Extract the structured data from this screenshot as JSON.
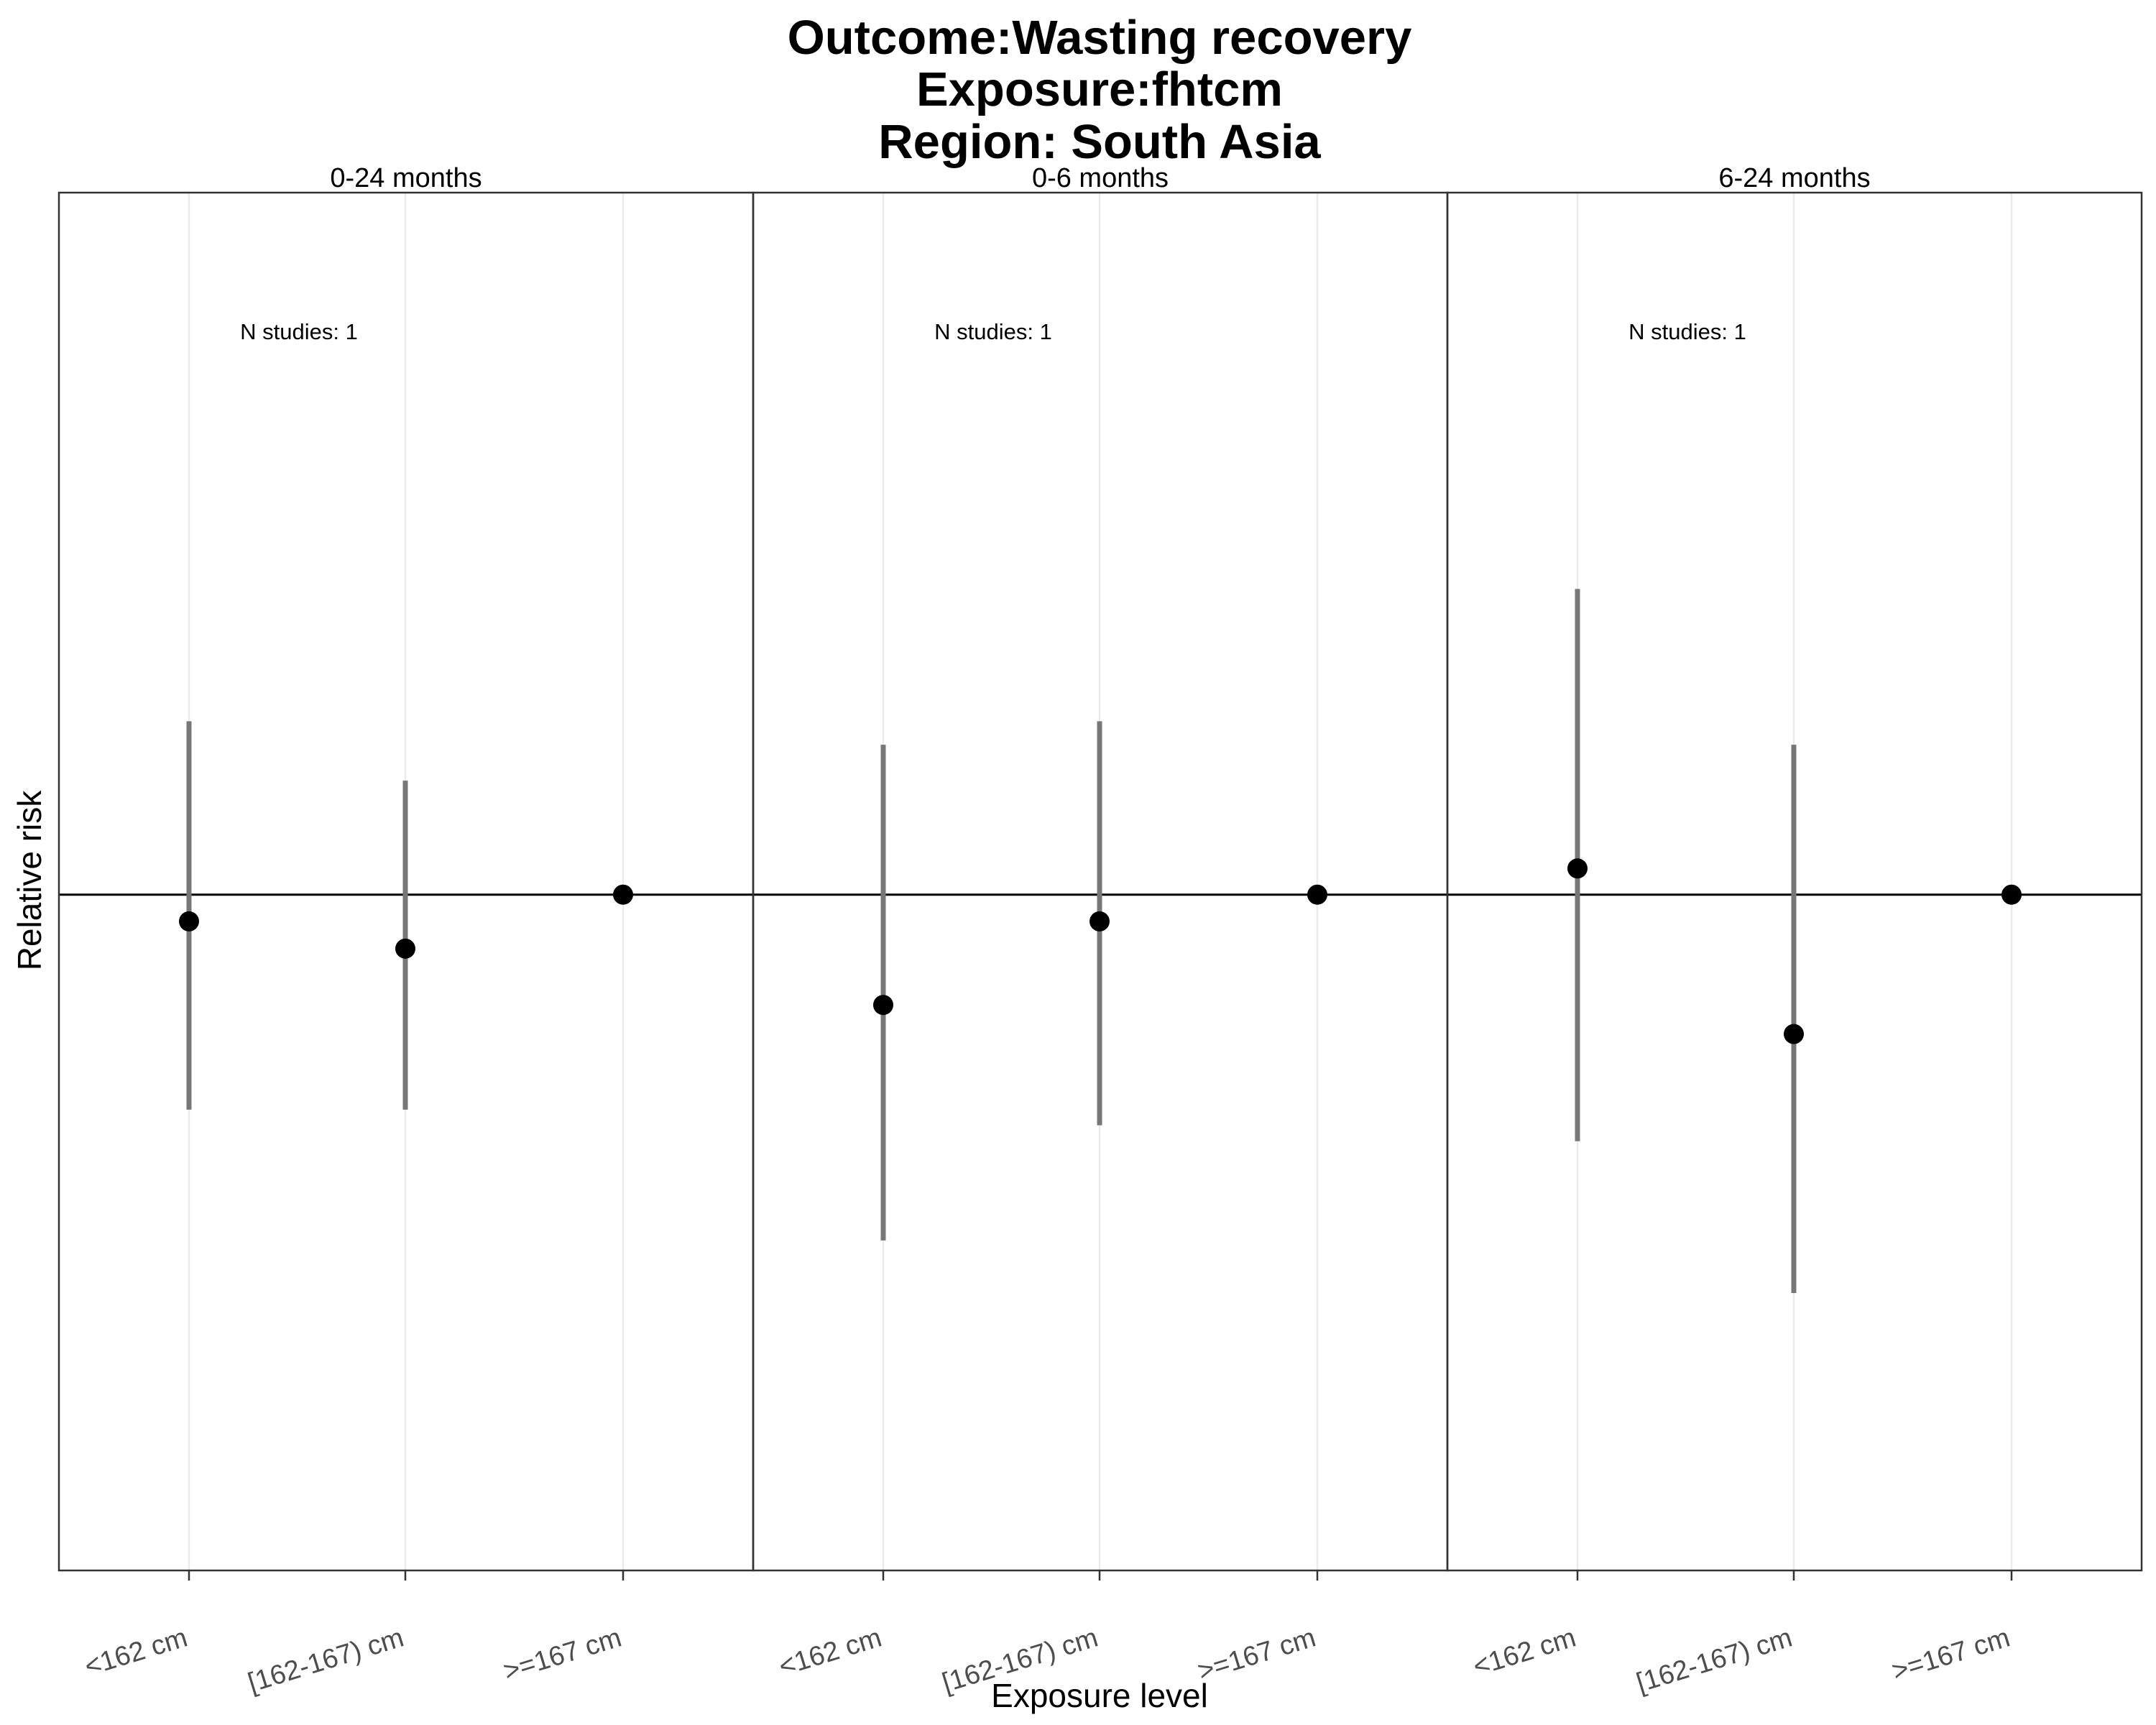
{
  "chart_data": {
    "type": "scatter",
    "title_lines": [
      "Outcome:Wasting recovery",
      "Exposure:fhtcm",
      "Region: South Asia"
    ],
    "xlabel": "Exposure level",
    "ylabel": "Relative risk",
    "categories": [
      "<162 cm",
      "[162-167) cm",
      ">=167 cm"
    ],
    "reference_line": 1.0,
    "y_scale": "log",
    "ylim": [
      0.6,
      1.7
    ],
    "grid": true,
    "panels": [
      {
        "label": "0-24 months",
        "annotation": "N studies: 1",
        "points": [
          {
            "category": "<162 cm",
            "estimate": 0.98,
            "ci_lower": 0.85,
            "ci_upper": 1.14
          },
          {
            "category": "[162-167) cm",
            "estimate": 0.96,
            "ci_lower": 0.85,
            "ci_upper": 1.09
          },
          {
            "category": ">=167 cm",
            "estimate": 1.0,
            "ci_lower": 1.0,
            "ci_upper": 1.0
          }
        ]
      },
      {
        "label": "0-6 months",
        "annotation": "N studies: 1",
        "points": [
          {
            "category": "<162 cm",
            "estimate": 0.92,
            "ci_lower": 0.77,
            "ci_upper": 1.12
          },
          {
            "category": "[162-167) cm",
            "estimate": 0.98,
            "ci_lower": 0.84,
            "ci_upper": 1.14
          },
          {
            "category": ">=167 cm",
            "estimate": 1.0,
            "ci_lower": 1.0,
            "ci_upper": 1.0
          }
        ]
      },
      {
        "label": "6-24 months",
        "annotation": "N studies: 1",
        "points": [
          {
            "category": "<162 cm",
            "estimate": 1.02,
            "ci_lower": 0.83,
            "ci_upper": 1.26
          },
          {
            "category": "[162-167) cm",
            "estimate": 0.9,
            "ci_lower": 0.74,
            "ci_upper": 1.12
          },
          {
            "category": ">=167 cm",
            "estimate": 1.0,
            "ci_lower": 1.0,
            "ci_upper": 1.0
          }
        ]
      }
    ]
  }
}
